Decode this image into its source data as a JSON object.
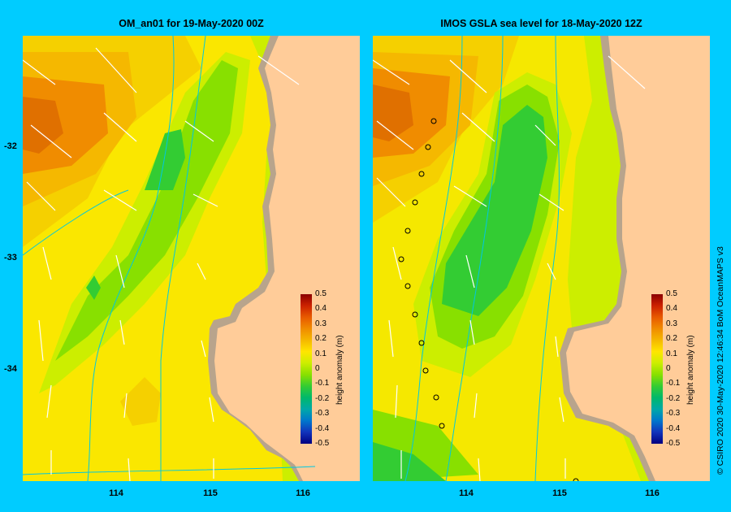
{
  "panels": [
    {
      "title": "OM_an01  for 19-May-2020 00Z"
    },
    {
      "title": "IMOS GSLA sea level  for 18-May-2020 12Z"
    }
  ],
  "y_ticks": [
    "-32",
    "-33",
    "-34"
  ],
  "x_ticks": [
    "114",
    "115",
    "116"
  ],
  "colorbar": {
    "unit_label": "height anomaly (m)",
    "ticks": [
      "0.5",
      "0.4",
      "0.3",
      "0.2",
      "0.1",
      "0",
      "-0.1",
      "-0.2",
      "-0.3",
      "-0.4",
      "-0.5"
    ],
    "colors": [
      "#8b0000",
      "#cc2200",
      "#e85a00",
      "#f08c00",
      "#f5b800",
      "#ffe600",
      "#ccee00",
      "#88e000",
      "#33cc33",
      "#00b86b",
      "#00a8a8",
      "#0077cc",
      "#1133bb",
      "#000080"
    ]
  },
  "credit": "© CSIRO 2020   30-May-2020 12:46:34 BoM OceanMAPS v3",
  "map_colors": {
    "land": "#ffcc99",
    "coast_shelf": "#b8a48c",
    "contour_line": "#00c8e0",
    "arrow": "#ffffff",
    "drifter": "#000000"
  }
}
